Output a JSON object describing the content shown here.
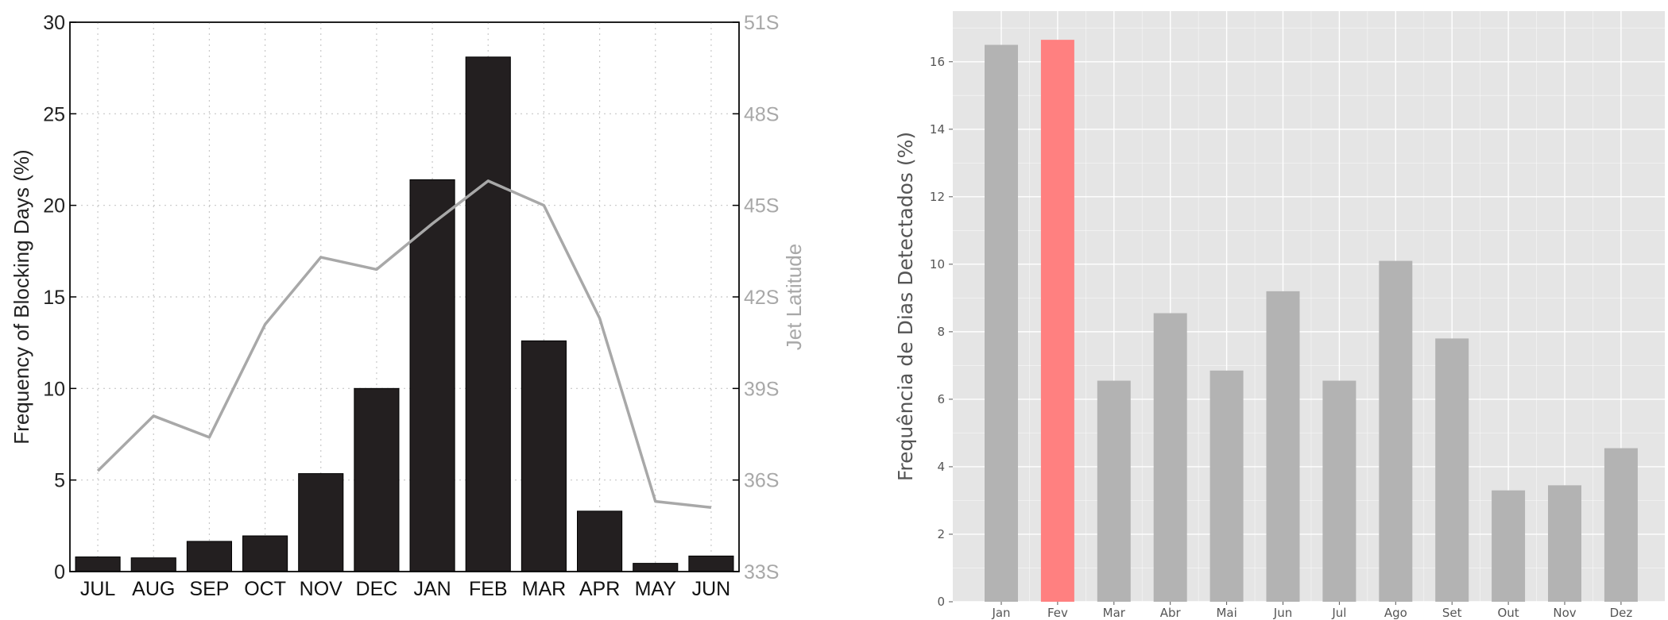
{
  "chart_data": [
    {
      "type": "bar",
      "categories": [
        "JUL",
        "AUG",
        "SEP",
        "OCT",
        "NOV",
        "DEC",
        "JAN",
        "FEB",
        "MAR",
        "APR",
        "MAY",
        "JUN"
      ],
      "series": [
        {
          "values": [
            0.8,
            0.75,
            1.65,
            1.95,
            5.35,
            10.0,
            21.4,
            28.1,
            12.6,
            3.3,
            0.45,
            0.85
          ],
          "color": "#231f20"
        }
      ],
      "line_series": [
        {
          "axis": "right",
          "values": [
            36.3,
            38.1,
            37.4,
            41.1,
            43.3,
            42.9,
            44.4,
            45.8,
            45.0,
            41.3,
            35.3,
            35.1
          ],
          "color": "#a8a8a8"
        }
      ],
      "ylabel": "Frequency of Blocking Days (%)",
      "y2label": "Jet Latitude",
      "ylim": [
        0,
        30
      ],
      "y2lim": [
        33,
        51
      ],
      "yticks": [
        "0",
        "5",
        "10",
        "15",
        "20",
        "25",
        "30"
      ],
      "y2ticks": [
        "33S",
        "36S",
        "39S",
        "42S",
        "45S",
        "48S",
        "51S"
      ],
      "grid": true
    },
    {
      "type": "bar",
      "categories": [
        "Jan",
        "Fev",
        "Mar",
        "Abr",
        "Mai",
        "Jun",
        "Jul",
        "Ago",
        "Set",
        "Out",
        "Nov",
        "Dez"
      ],
      "series": [
        {
          "values": [
            16.5,
            16.65,
            6.55,
            8.55,
            6.85,
            9.2,
            6.55,
            10.1,
            7.8,
            3.3,
            3.45,
            4.55
          ]
        }
      ],
      "bar_color": "#b3b3b3",
      "highlight_index": 1,
      "highlight_color": "#ff8080",
      "ylabel": "Frequência de Dias Detectados (%)",
      "ylim": [
        0,
        17.5
      ],
      "yticks": [
        "0",
        "2",
        "4",
        "6",
        "8",
        "10",
        "12",
        "14",
        "16"
      ],
      "grid": true,
      "background": "#e5e5e5"
    }
  ]
}
